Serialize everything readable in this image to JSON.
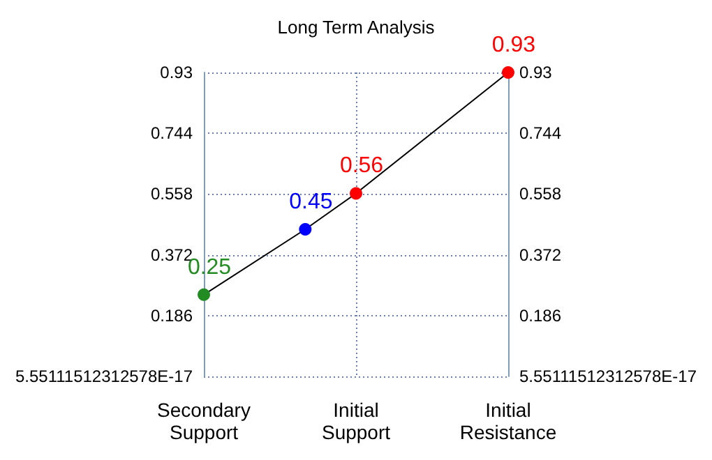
{
  "chart_data": {
    "type": "line",
    "title": "Long Term Analysis",
    "categories": [
      "Secondary Support",
      null,
      null,
      "Initial Support",
      null,
      null,
      "Initial Resistance"
    ],
    "series": [
      {
        "color": "#000000",
        "colors": [
          "#228b22",
          null,
          "#0000ff",
          "#ff0000",
          null,
          null,
          "#ff0000"
        ],
        "values": [
          0.25,
          null,
          0.45,
          0.56,
          null,
          null,
          0.93
        ]
      }
    ],
    "ylim": [
      0,
      0.93
    ],
    "yticks": [
      {
        "value": 0,
        "label": "5.55111512312578E-17"
      },
      0.186,
      0.372,
      0.558,
      0.744,
      0.93
    ],
    "y2lim": [
      0,
      0.93
    ],
    "y2ticks": [
      {
        "value": 0,
        "label": "5.55111512312578E-17"
      },
      0.186,
      0.372,
      0.558,
      0.744,
      0.93
    ],
    "data_labels": true,
    "grid": true,
    "marker": "circle",
    "line_style": "solid"
  }
}
